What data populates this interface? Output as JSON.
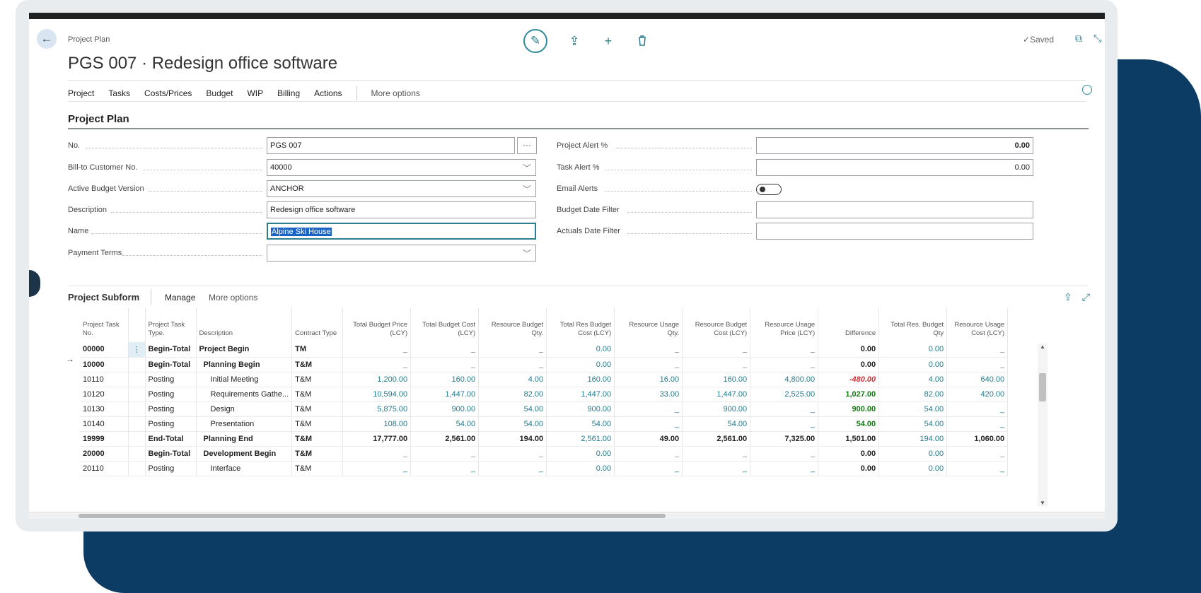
{
  "header": {
    "breadcrumb": "Project Plan",
    "title": "PGS 007 · Redesign office software",
    "saved": "Saved",
    "back_icon": "←",
    "edit_icon": "✎",
    "share_icon": "⇪",
    "add_icon": "+",
    "delete_icon": "🗑",
    "openwin_icon": "⧉",
    "collapse_icon": "⤡"
  },
  "menu": {
    "items": [
      "Project",
      "Tasks",
      "Costs/Prices",
      "Budget",
      "WIP",
      "Billing",
      "Actions"
    ],
    "more": "More options"
  },
  "form": {
    "section_title": "Project Plan",
    "left": {
      "no_label": "No.",
      "no_value": "PGS 007",
      "ellipsis": "···",
      "bill_label": "Bill-to Customer No.",
      "bill_value": "40000",
      "budget_label": "Active Budget Version",
      "budget_value": "ANCHOR",
      "desc_label": "Description",
      "desc_value": "Redesign office software",
      "name_label": "Name",
      "name_value": "Alpine Ski House",
      "terms_label": "Payment Terms",
      "terms_value": ""
    },
    "right": {
      "project_alert_label": "Project Alert %",
      "project_alert_value": "0.00",
      "task_alert_label": "Task Alert %",
      "task_alert_value": "0.00",
      "email_alerts_label": "Email Alerts",
      "email_alerts_on": false,
      "budget_filter_label": "Budget Date Filter",
      "budget_filter_value": "",
      "actuals_filter_label": "Actuals Date Filter",
      "actuals_filter_value": ""
    }
  },
  "subform": {
    "title": "Project Subform",
    "manage": "Manage",
    "more": "More options",
    "columns": [
      "Project Task No.",
      "",
      "Project Task Type.",
      "Description",
      "Contract Type",
      "Total Budget Price (LCY)",
      "Total Budget Cost (LCY)",
      "Resource Budget Qty.",
      "Total Res Budget Cost (LCY)",
      "Resource Usage Qty.",
      "Resource Budget Cost (LCY)",
      "Resource Usage Price (LCY)",
      "Difference",
      "Total Res. Budget Qty",
      "Resource Usage Cost (LCY)"
    ],
    "rows": [
      {
        "no": "00000",
        "type": "Begin-Total",
        "desc": "Project Begin",
        "contract": "TM",
        "tbp": "_",
        "tbc": "_",
        "rbq": "_",
        "trbc": "0.00",
        "ruq": "_",
        "rbc": "_",
        "rup": "_",
        "diff": "0.00",
        "trbq": "0.00",
        "ruc": "_",
        "bold": true,
        "selected": true
      },
      {
        "no": "10000",
        "type": "Begin-Total",
        "desc": "Planning Begin",
        "contract": "T&M",
        "tbp": "_",
        "tbc": "_",
        "rbq": "_",
        "trbc": "0.00",
        "ruq": "_",
        "rbc": "_",
        "rup": "_",
        "diff": "0.00",
        "trbq": "0.00",
        "ruc": "_",
        "bold": true
      },
      {
        "no": "10110",
        "type": "Posting",
        "desc": "Initial Meeting",
        "contract": "T&M",
        "tbp": "1,200.00",
        "tbc": "160.00",
        "rbq": "4.00",
        "trbc": "160.00",
        "ruq": "16.00",
        "rbc": "160.00",
        "rup": "4,800.00",
        "diff": "-480.00",
        "trbq": "4.00",
        "ruc": "640.00"
      },
      {
        "no": "10120",
        "type": "Posting",
        "desc": "Requirements Gathe...",
        "contract": "T&M",
        "tbp": "10,594.00",
        "tbc": "1,447.00",
        "rbq": "82.00",
        "trbc": "1,447.00",
        "ruq": "33.00",
        "rbc": "1,447.00",
        "rup": "2,525.00",
        "diff": "1,027.00",
        "trbq": "82.00",
        "ruc": "420.00"
      },
      {
        "no": "10130",
        "type": "Posting",
        "desc": "Design",
        "contract": "T&M",
        "tbp": "5,875.00",
        "tbc": "900.00",
        "rbq": "54.00",
        "trbc": "900.00",
        "ruq": "_",
        "rbc": "900.00",
        "rup": "_",
        "diff": "900.00",
        "trbq": "54.00",
        "ruc": "_"
      },
      {
        "no": "10140",
        "type": "Posting",
        "desc": "Presentation",
        "contract": "T&M",
        "tbp": "108.00",
        "tbc": "54.00",
        "rbq": "54.00",
        "trbc": "54.00",
        "ruq": "_",
        "rbc": "54.00",
        "rup": "_",
        "diff": "54.00",
        "trbq": "54.00",
        "ruc": "_"
      },
      {
        "no": "19999",
        "type": "End-Total",
        "desc": "Planning End",
        "contract": "T&M",
        "tbp": "17,777.00",
        "tbc": "2,561.00",
        "rbq": "194.00",
        "trbc": "2,561.00",
        "ruq": "49.00",
        "rbc": "2,561.00",
        "rup": "7,325.00",
        "diff": "1,501.00",
        "trbq": "194.00",
        "ruc": "1,060.00",
        "bold": true
      },
      {
        "no": "20000",
        "type": "Begin-Total",
        "desc": "Development Begin",
        "contract": "T&M",
        "tbp": "_",
        "tbc": "_",
        "rbq": "_",
        "trbc": "0.00",
        "ruq": "_",
        "rbc": "_",
        "rup": "_",
        "diff": "0.00",
        "trbq": "0.00",
        "ruc": "_",
        "bold": true
      },
      {
        "no": "20110",
        "type": "Posting",
        "desc": "Interface",
        "contract": "T&M",
        "tbp": "_",
        "tbc": "_",
        "rbq": "_",
        "trbc": "0.00",
        "ruq": "_",
        "rbc": "_",
        "rup": "_",
        "diff": "0.00",
        "trbq": "0.00",
        "ruc": "_"
      }
    ]
  },
  "colors": {
    "accent": "#2d7e8e",
    "link": "#1c7b8c",
    "negative": "#d13438",
    "positive": "#107c10",
    "navy": "#0c3b63"
  }
}
